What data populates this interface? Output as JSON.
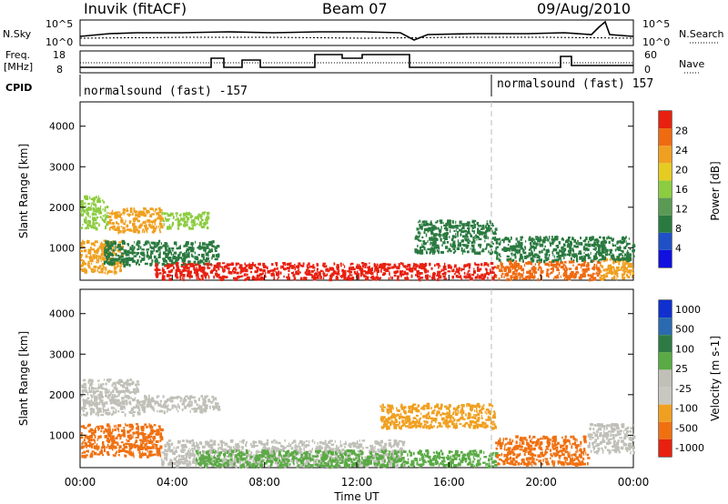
{
  "header": {
    "site": "Inuvik (fitACF)",
    "beam": "Beam 07",
    "date": "09/Aug/2010"
  },
  "strips": {
    "nsky_label": "N.Sky",
    "nsky_ticks": [
      "10^5",
      "10^0"
    ],
    "nsearch_label": "N.Search",
    "nsearch_ticks": [
      "10^5",
      "10^0"
    ],
    "freq_label_line1": "Freq.",
    "freq_label_line2": "[MHz]",
    "freq_ticks": [
      "18",
      "8"
    ],
    "nave_label": "Nave",
    "nave_ticks": [
      "60",
      "0"
    ],
    "cpid_label": "CPID",
    "cpid_segments": [
      {
        "label": "normalsound (fast) -157",
        "start_hour": 0
      },
      {
        "label": "normalsound (fast) 157",
        "start_hour": 18
      }
    ]
  },
  "x_axis": {
    "title": "Time UT",
    "tick_labels": [
      "00:00",
      "04:00",
      "08:00",
      "12:00",
      "16:00",
      "20:00",
      "00:00"
    ],
    "range_hours": [
      0,
      24
    ]
  },
  "colors": {
    "power_scale": [
      "#1010e0",
      "#2050c8",
      "#2a7a40",
      "#5a9a55",
      "#8ccc40",
      "#e6cc20",
      "#f0a020",
      "#f06a10",
      "#e82010"
    ],
    "velocity_scale": [
      "#1030d0",
      "#2a6ab0",
      "#2e7a45",
      "#5aaa45",
      "#c0c0b8",
      "#c8c8c0",
      "#f0a020",
      "#f07010",
      "#e82010"
    ]
  },
  "chart_data": [
    {
      "type": "heatmap",
      "title": "",
      "xlabel": "Time UT",
      "ylabel": "Slant Range [km]",
      "xlim": [
        0,
        24
      ],
      "ylim": [
        200,
        4600
      ],
      "y_ticks": [
        "1000",
        "2000",
        "3000",
        "4000"
      ],
      "colorbar_label": "Power [dB]",
      "colorbar_ticks": [
        "4",
        "8",
        "12",
        "16",
        "20",
        "24",
        "28"
      ],
      "regions": [
        {
          "t0": 0.0,
          "t1": 1.2,
          "r0": 1500,
          "r1": 2300,
          "value": 14
        },
        {
          "t0": 1.2,
          "t1": 3.5,
          "r0": 1400,
          "r1": 2000,
          "value": 20
        },
        {
          "t0": 3.5,
          "t1": 5.5,
          "r0": 1500,
          "r1": 1900,
          "value": 16
        },
        {
          "t0": 0.0,
          "t1": 1.8,
          "r0": 400,
          "r1": 1200,
          "value": 22
        },
        {
          "t0": 1.0,
          "t1": 6.0,
          "r0": 600,
          "r1": 1200,
          "value": 10
        },
        {
          "t0": 3.2,
          "t1": 18.0,
          "r0": 250,
          "r1": 650,
          "value": 28
        },
        {
          "t0": 18.0,
          "t1": 22.5,
          "r0": 250,
          "r1": 700,
          "value": 26
        },
        {
          "t0": 22.5,
          "t1": 24.0,
          "r0": 250,
          "r1": 800,
          "value": 20
        },
        {
          "t0": 14.5,
          "t1": 18.0,
          "r0": 900,
          "r1": 1700,
          "value": 8
        },
        {
          "t0": 18.0,
          "t1": 24.0,
          "r0": 700,
          "r1": 1300,
          "value": 8
        }
      ]
    },
    {
      "type": "heatmap",
      "title": "",
      "xlabel": "Time UT",
      "ylabel": "Slant Range [km]",
      "xlim": [
        0,
        24
      ],
      "ylim": [
        200,
        4600
      ],
      "y_ticks": [
        "1000",
        "2000",
        "3000",
        "4000"
      ],
      "colorbar_label": "Velocity [m s-1]",
      "colorbar_ticks": [
        "1000",
        "500",
        "100",
        "25",
        "-25",
        "-100",
        "-500",
        "-1000"
      ],
      "regions": [
        {
          "t0": 0.0,
          "t1": 2.5,
          "r0": 1500,
          "r1": 2400,
          "value": 0
        },
        {
          "t0": 2.5,
          "t1": 6.0,
          "r0": 1600,
          "r1": 2000,
          "value": 0
        },
        {
          "t0": 0.0,
          "t1": 3.5,
          "r0": 500,
          "r1": 1300,
          "value": -120
        },
        {
          "t0": 3.5,
          "t1": 14.0,
          "r0": 250,
          "r1": 900,
          "value": 0
        },
        {
          "t0": 5.0,
          "t1": 18.0,
          "r0": 250,
          "r1": 650,
          "value": 80
        },
        {
          "t0": 13.0,
          "t1": 18.0,
          "r0": 1200,
          "r1": 1800,
          "value": -30
        },
        {
          "t0": 18.0,
          "t1": 22.0,
          "r0": 300,
          "r1": 1000,
          "value": -300
        },
        {
          "t0": 22.0,
          "t1": 24.0,
          "r0": 600,
          "r1": 1300,
          "value": 0
        }
      ]
    }
  ]
}
